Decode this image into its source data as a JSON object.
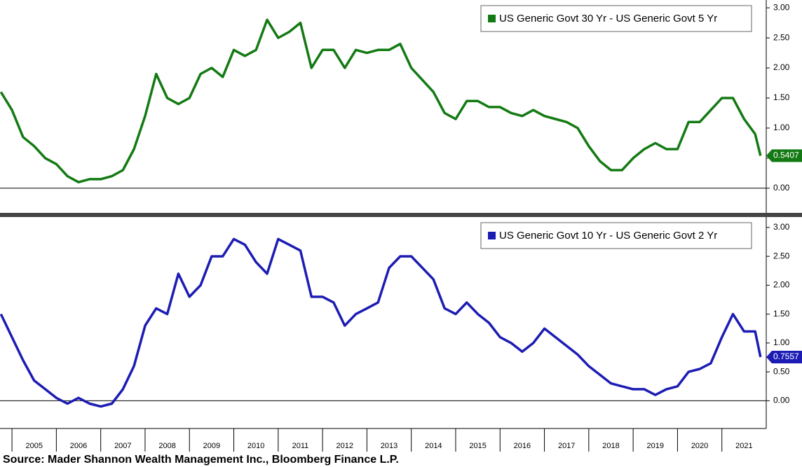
{
  "chart_data": [
    {
      "type": "line",
      "legend": "upper right",
      "x": [
        2004.75,
        2005.0,
        2005.25,
        2005.5,
        2005.75,
        2006.0,
        2006.25,
        2006.5,
        2006.75,
        2007.0,
        2007.25,
        2007.5,
        2007.75,
        2008.0,
        2008.25,
        2008.5,
        2008.75,
        2009.0,
        2009.25,
        2009.5,
        2009.75,
        2010.0,
        2010.25,
        2010.5,
        2010.75,
        2011.0,
        2011.25,
        2011.5,
        2011.75,
        2012.0,
        2012.25,
        2012.5,
        2012.75,
        2013.0,
        2013.25,
        2013.5,
        2013.75,
        2014.0,
        2014.25,
        2014.5,
        2014.75,
        2015.0,
        2015.25,
        2015.5,
        2015.75,
        2016.0,
        2016.25,
        2016.5,
        2016.75,
        2017.0,
        2017.25,
        2017.5,
        2017.75,
        2018.0,
        2018.25,
        2018.5,
        2018.75,
        2019.0,
        2019.25,
        2019.5,
        2019.75,
        2020.0,
        2020.25,
        2020.5,
        2020.75,
        2021.0,
        2021.25,
        2021.5,
        2021.75,
        2021.87
      ],
      "series": [
        {
          "name": "US Generic Govt 30 Yr - US Generic Govt 5 Yr",
          "color": "#137a13",
          "values": [
            1.6,
            1.3,
            0.85,
            0.7,
            0.5,
            0.4,
            0.2,
            0.1,
            0.15,
            0.15,
            0.2,
            0.3,
            0.65,
            1.2,
            1.9,
            1.5,
            1.4,
            1.5,
            1.9,
            2.0,
            1.85,
            2.3,
            2.2,
            2.3,
            2.8,
            2.5,
            2.6,
            2.75,
            2.0,
            2.3,
            2.3,
            2.0,
            2.3,
            2.25,
            2.3,
            2.3,
            2.4,
            2.0,
            1.8,
            1.6,
            1.25,
            1.15,
            1.45,
            1.45,
            1.35,
            1.35,
            1.25,
            1.2,
            1.3,
            1.2,
            1.15,
            1.1,
            1.0,
            0.7,
            0.45,
            0.3,
            0.3,
            0.5,
            0.65,
            0.75,
            0.65,
            0.65,
            1.1,
            1.1,
            1.3,
            1.5,
            1.5,
            1.15,
            0.9,
            0.5407
          ]
        }
      ],
      "xlim": [
        2004.73,
        2022.0
      ],
      "ylim": [
        -0.41,
        3.13
      ],
      "yticks": [
        {
          "value": 0,
          "label": "0.00"
        },
        {
          "value": 0.5,
          "label": "0.50"
        },
        {
          "value": 1,
          "label": "1.00"
        },
        {
          "value": 1.5,
          "label": "1.50"
        },
        {
          "value": 2,
          "label": "2.00"
        },
        {
          "value": 2.5,
          "label": "2.50"
        },
        {
          "value": 3,
          "label": "3.00"
        }
      ]
    },
    {
      "type": "line",
      "legend": "upper right",
      "x": [
        2004.75,
        2005.0,
        2005.25,
        2005.5,
        2005.75,
        2006.0,
        2006.25,
        2006.5,
        2006.75,
        2007.0,
        2007.25,
        2007.5,
        2007.75,
        2008.0,
        2008.25,
        2008.5,
        2008.75,
        2009.0,
        2009.25,
        2009.5,
        2009.75,
        2010.0,
        2010.25,
        2010.5,
        2010.75,
        2011.0,
        2011.25,
        2011.5,
        2011.75,
        2012.0,
        2012.25,
        2012.5,
        2012.75,
        2013.0,
        2013.25,
        2013.5,
        2013.75,
        2014.0,
        2014.25,
        2014.5,
        2014.75,
        2015.0,
        2015.25,
        2015.5,
        2015.75,
        2016.0,
        2016.25,
        2016.5,
        2016.75,
        2017.0,
        2017.25,
        2017.5,
        2017.75,
        2018.0,
        2018.25,
        2018.5,
        2018.75,
        2019.0,
        2019.25,
        2019.5,
        2019.75,
        2020.0,
        2020.25,
        2020.5,
        2020.75,
        2021.0,
        2021.25,
        2021.5,
        2021.75,
        2021.87
      ],
      "series": [
        {
          "name": "US Generic Govt 10 Yr - US Generic Govt 2 Yr",
          "color": "#1c1cb4",
          "values": [
            1.5,
            1.1,
            0.7,
            0.35,
            0.2,
            0.05,
            -0.05,
            0.05,
            -0.05,
            -0.1,
            -0.05,
            0.2,
            0.6,
            1.3,
            1.6,
            1.5,
            2.2,
            1.8,
            2.0,
            2.5,
            2.5,
            2.8,
            2.7,
            2.4,
            2.2,
            2.8,
            2.7,
            2.6,
            1.8,
            1.8,
            1.7,
            1.3,
            1.5,
            1.6,
            1.7,
            2.3,
            2.5,
            2.5,
            2.3,
            2.1,
            1.6,
            1.5,
            1.7,
            1.5,
            1.35,
            1.1,
            1.0,
            0.85,
            1.0,
            1.25,
            1.1,
            0.95,
            0.8,
            0.6,
            0.45,
            0.3,
            0.25,
            0.2,
            0.2,
            0.1,
            0.2,
            0.25,
            0.5,
            0.55,
            0.65,
            1.1,
            1.5,
            1.2,
            1.2,
            0.7557
          ]
        }
      ],
      "xlim": [
        2004.73,
        2022.0
      ],
      "ylim": [
        -0.48,
        3.18
      ],
      "yticks": [
        {
          "value": 0,
          "label": "0.00"
        },
        {
          "value": 0.5,
          "label": "0.50"
        },
        {
          "value": 1,
          "label": "1.00"
        },
        {
          "value": 1.5,
          "label": "1.50"
        },
        {
          "value": 2,
          "label": "2.00"
        },
        {
          "value": 2.5,
          "label": "2.50"
        },
        {
          "value": 3,
          "label": "3.00"
        }
      ],
      "xticks": [
        2005,
        2006,
        2007,
        2008,
        2009,
        2010,
        2011,
        2012,
        2013,
        2014,
        2015,
        2016,
        2017,
        2018,
        2019,
        2020,
        2021
      ]
    }
  ],
  "source": "Source: Mader Shannon Wealth Management Inc., Bloomberg Finance L.P."
}
